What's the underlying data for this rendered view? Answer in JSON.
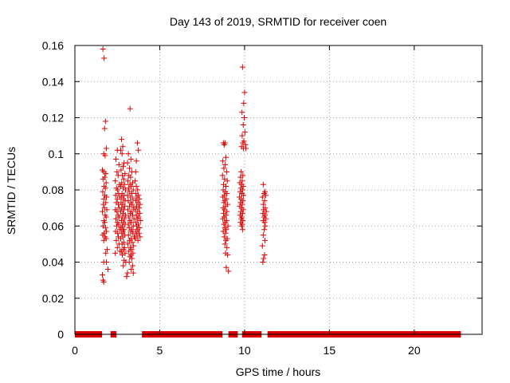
{
  "chart_data": {
    "type": "scatter",
    "title": "Day 143 of 2019, SRMTID for receiver coen",
    "xlabel": "GPS time / hours",
    "ylabel": "SRMTID / TECUs",
    "xlim": [
      0,
      24
    ],
    "ylim": [
      0,
      0.16
    ],
    "x_ticks": [
      {
        "value": 0,
        "label": "0"
      },
      {
        "value": 5,
        "label": "5"
      },
      {
        "value": 10,
        "label": "10"
      },
      {
        "value": 15,
        "label": "15"
      },
      {
        "value": 20,
        "label": "20"
      }
    ],
    "y_ticks": [
      {
        "value": 0,
        "label": "0"
      },
      {
        "value": 0.02,
        "label": "0.02"
      },
      {
        "value": 0.04,
        "label": "0.04"
      },
      {
        "value": 0.06,
        "label": "0.06"
      },
      {
        "value": 0.08,
        "label": "0.08"
      },
      {
        "value": 0.1,
        "label": "0.1"
      },
      {
        "value": 0.12,
        "label": "0.12"
      },
      {
        "value": 0.14,
        "label": "0.14"
      },
      {
        "value": 0.16,
        "label": "0.16"
      }
    ],
    "grid": true,
    "marker": "+",
    "color": "#dd0000",
    "zero_segments": [
      [
        0.0,
        1.6
      ],
      [
        2.1,
        2.45
      ],
      [
        3.95,
        8.7
      ],
      [
        9.05,
        9.6
      ],
      [
        9.85,
        11.0
      ],
      [
        11.35,
        22.75
      ]
    ],
    "points": [
      [
        1.65,
        0.158
      ],
      [
        1.72,
        0.153
      ],
      [
        1.8,
        0.118
      ],
      [
        1.75,
        0.114
      ],
      [
        1.85,
        0.103
      ],
      [
        1.7,
        0.1
      ],
      [
        1.78,
        0.099
      ],
      [
        1.62,
        0.091
      ],
      [
        1.7,
        0.09
      ],
      [
        1.82,
        0.089
      ],
      [
        1.76,
        0.087
      ],
      [
        1.66,
        0.086
      ],
      [
        1.84,
        0.084
      ],
      [
        1.72,
        0.082
      ],
      [
        1.8,
        0.081
      ],
      [
        1.64,
        0.079
      ],
      [
        1.76,
        0.077
      ],
      [
        1.86,
        0.076
      ],
      [
        1.7,
        0.075
      ],
      [
        1.82,
        0.073
      ],
      [
        1.68,
        0.072
      ],
      [
        1.74,
        0.07
      ],
      [
        1.88,
        0.069
      ],
      [
        1.62,
        0.068
      ],
      [
        1.78,
        0.066
      ],
      [
        1.84,
        0.065
      ],
      [
        1.7,
        0.063
      ],
      [
        1.76,
        0.062
      ],
      [
        1.66,
        0.06
      ],
      [
        1.8,
        0.059
      ],
      [
        1.86,
        0.057
      ],
      [
        1.72,
        0.056
      ],
      [
        1.64,
        0.055
      ],
      [
        1.78,
        0.054
      ],
      [
        1.84,
        0.053
      ],
      [
        1.7,
        0.052
      ],
      [
        1.9,
        0.047
      ],
      [
        1.82,
        0.045
      ],
      [
        1.7,
        0.04
      ],
      [
        1.86,
        0.04
      ],
      [
        1.95,
        0.036
      ],
      [
        1.62,
        0.033
      ],
      [
        1.66,
        0.03
      ],
      [
        1.7,
        0.029
      ],
      [
        2.5,
        0.102
      ],
      [
        2.42,
        0.097
      ],
      [
        2.6,
        0.094
      ],
      [
        2.48,
        0.09
      ],
      [
        2.55,
        0.088
      ],
      [
        2.38,
        0.085
      ],
      [
        2.62,
        0.083
      ],
      [
        2.45,
        0.081
      ],
      [
        2.52,
        0.08
      ],
      [
        2.58,
        0.078
      ],
      [
        2.4,
        0.077
      ],
      [
        2.65,
        0.076
      ],
      [
        2.5,
        0.075
      ],
      [
        2.44,
        0.073
      ],
      [
        2.56,
        0.072
      ],
      [
        2.6,
        0.07
      ],
      [
        2.38,
        0.069
      ],
      [
        2.48,
        0.068
      ],
      [
        2.54,
        0.066
      ],
      [
        2.62,
        0.065
      ],
      [
        2.42,
        0.064
      ],
      [
        2.5,
        0.062
      ],
      [
        2.58,
        0.061
      ],
      [
        2.46,
        0.06
      ],
      [
        2.64,
        0.058
      ],
      [
        2.4,
        0.057
      ],
      [
        2.52,
        0.056
      ],
      [
        2.56,
        0.054
      ],
      [
        2.44,
        0.052
      ],
      [
        2.6,
        0.05
      ],
      [
        2.5,
        0.048
      ],
      [
        2.66,
        0.046
      ],
      [
        2.38,
        0.045
      ],
      [
        2.75,
        0.108
      ],
      [
        2.82,
        0.104
      ],
      [
        2.7,
        0.102
      ],
      [
        2.78,
        0.1
      ],
      [
        2.9,
        0.095
      ],
      [
        2.84,
        0.093
      ],
      [
        2.72,
        0.091
      ],
      [
        2.95,
        0.089
      ],
      [
        2.8,
        0.088
      ],
      [
        2.88,
        0.086
      ],
      [
        2.76,
        0.084
      ],
      [
        2.92,
        0.083
      ],
      [
        2.7,
        0.082
      ],
      [
        2.85,
        0.081
      ],
      [
        2.98,
        0.08
      ],
      [
        2.78,
        0.078
      ],
      [
        2.9,
        0.077
      ],
      [
        2.74,
        0.076
      ],
      [
        2.86,
        0.075
      ],
      [
        2.96,
        0.074
      ],
      [
        2.72,
        0.073
      ],
      [
        2.82,
        0.072
      ],
      [
        2.94,
        0.071
      ],
      [
        2.76,
        0.07
      ],
      [
        2.88,
        0.069
      ],
      [
        2.7,
        0.068
      ],
      [
        2.84,
        0.067
      ],
      [
        2.98,
        0.066
      ],
      [
        2.78,
        0.065
      ],
      [
        2.92,
        0.064
      ],
      [
        2.74,
        0.063
      ],
      [
        2.86,
        0.062
      ],
      [
        2.96,
        0.061
      ],
      [
        2.8,
        0.06
      ],
      [
        2.72,
        0.059
      ],
      [
        2.9,
        0.058
      ],
      [
        2.84,
        0.057
      ],
      [
        2.76,
        0.056
      ],
      [
        2.94,
        0.055
      ],
      [
        2.82,
        0.054
      ],
      [
        2.7,
        0.053
      ],
      [
        2.88,
        0.051
      ],
      [
        2.78,
        0.05
      ],
      [
        2.92,
        0.048
      ],
      [
        2.86,
        0.047
      ],
      [
        2.74,
        0.046
      ],
      [
        2.96,
        0.045
      ],
      [
        2.8,
        0.044
      ],
      [
        2.9,
        0.041
      ],
      [
        3.0,
        0.04
      ],
      [
        2.85,
        0.038
      ],
      [
        3.1,
        0.034
      ],
      [
        3.05,
        0.032
      ],
      [
        3.25,
        0.125
      ],
      [
        3.15,
        0.1
      ],
      [
        3.3,
        0.097
      ],
      [
        3.1,
        0.095
      ],
      [
        3.22,
        0.092
      ],
      [
        3.35,
        0.09
      ],
      [
        3.18,
        0.088
      ],
      [
        3.28,
        0.087
      ],
      [
        3.12,
        0.085
      ],
      [
        3.4,
        0.084
      ],
      [
        3.24,
        0.083
      ],
      [
        3.32,
        0.082
      ],
      [
        3.16,
        0.081
      ],
      [
        3.44,
        0.08
      ],
      [
        3.2,
        0.079
      ],
      [
        3.36,
        0.078
      ],
      [
        3.1,
        0.077
      ],
      [
        3.28,
        0.076
      ],
      [
        3.42,
        0.075
      ],
      [
        3.14,
        0.074
      ],
      [
        3.3,
        0.073
      ],
      [
        3.38,
        0.072
      ],
      [
        3.22,
        0.071
      ],
      [
        3.46,
        0.07
      ],
      [
        3.12,
        0.069
      ],
      [
        3.34,
        0.068
      ],
      [
        3.26,
        0.067
      ],
      [
        3.4,
        0.066
      ],
      [
        3.18,
        0.065
      ],
      [
        3.48,
        0.064
      ],
      [
        3.24,
        0.063
      ],
      [
        3.32,
        0.062
      ],
      [
        3.14,
        0.061
      ],
      [
        3.44,
        0.06
      ],
      [
        3.2,
        0.059
      ],
      [
        3.36,
        0.058
      ],
      [
        3.28,
        0.057
      ],
      [
        3.42,
        0.056
      ],
      [
        3.16,
        0.055
      ],
      [
        3.5,
        0.054
      ],
      [
        3.3,
        0.053
      ],
      [
        3.22,
        0.052
      ],
      [
        3.38,
        0.051
      ],
      [
        3.12,
        0.05
      ],
      [
        3.46,
        0.049
      ],
      [
        3.26,
        0.048
      ],
      [
        3.34,
        0.047
      ],
      [
        3.18,
        0.046
      ],
      [
        3.42,
        0.045
      ],
      [
        3.3,
        0.044
      ],
      [
        3.24,
        0.043
      ],
      [
        3.36,
        0.042
      ],
      [
        3.2,
        0.04
      ],
      [
        3.4,
        0.038
      ],
      [
        3.32,
        0.036
      ],
      [
        3.44,
        0.034
      ],
      [
        3.55,
        0.085
      ],
      [
        3.62,
        0.082
      ],
      [
        3.7,
        0.08
      ],
      [
        3.58,
        0.078
      ],
      [
        3.75,
        0.077
      ],
      [
        3.66,
        0.076
      ],
      [
        3.8,
        0.075
      ],
      [
        3.6,
        0.074
      ],
      [
        3.72,
        0.073
      ],
      [
        3.84,
        0.072
      ],
      [
        3.64,
        0.071
      ],
      [
        3.78,
        0.07
      ],
      [
        3.56,
        0.069
      ],
      [
        3.7,
        0.068
      ],
      [
        3.82,
        0.067
      ],
      [
        3.62,
        0.066
      ],
      [
        3.76,
        0.065
      ],
      [
        3.68,
        0.064
      ],
      [
        3.86,
        0.063
      ],
      [
        3.58,
        0.062
      ],
      [
        3.74,
        0.061
      ],
      [
        3.64,
        0.06
      ],
      [
        3.8,
        0.059
      ],
      [
        3.7,
        0.058
      ],
      [
        3.6,
        0.057
      ],
      [
        3.78,
        0.056
      ],
      [
        3.66,
        0.055
      ],
      [
        3.84,
        0.054
      ],
      [
        3.56,
        0.053
      ],
      [
        3.72,
        0.052
      ],
      [
        3.68,
        0.106
      ],
      [
        3.74,
        0.102
      ],
      [
        3.62,
        0.096
      ],
      [
        3.58,
        0.09
      ],
      [
        8.75,
        0.106
      ],
      [
        8.85,
        0.106
      ],
      [
        8.8,
        0.105
      ],
      [
        8.9,
        0.098
      ],
      [
        8.72,
        0.096
      ],
      [
        8.86,
        0.094
      ],
      [
        8.78,
        0.092
      ],
      [
        8.94,
        0.09
      ],
      [
        8.7,
        0.088
      ],
      [
        8.82,
        0.086
      ],
      [
        8.98,
        0.085
      ],
      [
        8.76,
        0.083
      ],
      [
        8.9,
        0.082
      ],
      [
        8.74,
        0.08
      ],
      [
        8.86,
        0.079
      ],
      [
        8.96,
        0.078
      ],
      [
        8.8,
        0.077
      ],
      [
        8.72,
        0.076
      ],
      [
        8.92,
        0.075
      ],
      [
        8.84,
        0.074
      ],
      [
        8.78,
        0.073
      ],
      [
        9.0,
        0.072
      ],
      [
        8.88,
        0.071
      ],
      [
        8.74,
        0.07
      ],
      [
        8.82,
        0.069
      ],
      [
        8.96,
        0.068
      ],
      [
        8.76,
        0.067
      ],
      [
        8.9,
        0.066
      ],
      [
        8.8,
        0.065
      ],
      [
        8.72,
        0.064
      ],
      [
        8.94,
        0.063
      ],
      [
        8.86,
        0.062
      ],
      [
        8.78,
        0.061
      ],
      [
        9.02,
        0.06
      ],
      [
        8.84,
        0.059
      ],
      [
        8.92,
        0.058
      ],
      [
        8.74,
        0.057
      ],
      [
        8.88,
        0.056
      ],
      [
        8.8,
        0.054
      ],
      [
        8.98,
        0.053
      ],
      [
        8.9,
        0.052
      ],
      [
        8.84,
        0.05
      ],
      [
        8.96,
        0.048
      ],
      [
        8.88,
        0.045
      ],
      [
        9.0,
        0.044
      ],
      [
        8.92,
        0.037
      ],
      [
        9.05,
        0.035
      ],
      [
        9.88,
        0.148
      ],
      [
        10.0,
        0.134
      ],
      [
        9.95,
        0.128
      ],
      [
        9.85,
        0.123
      ],
      [
        9.98,
        0.12
      ],
      [
        9.92,
        0.116
      ],
      [
        10.02,
        0.112
      ],
      [
        9.86,
        0.11
      ],
      [
        9.96,
        0.107
      ],
      [
        9.9,
        0.106
      ],
      [
        10.05,
        0.105
      ],
      [
        9.82,
        0.104
      ],
      [
        9.94,
        0.103
      ],
      [
        10.08,
        0.103
      ],
      [
        9.8,
        0.09
      ],
      [
        9.9,
        0.088
      ],
      [
        9.76,
        0.087
      ],
      [
        9.86,
        0.085
      ],
      [
        9.72,
        0.084
      ],
      [
        9.82,
        0.083
      ],
      [
        9.92,
        0.082
      ],
      [
        9.78,
        0.081
      ],
      [
        9.88,
        0.08
      ],
      [
        9.74,
        0.079
      ],
      [
        9.84,
        0.078
      ],
      [
        9.94,
        0.077
      ],
      [
        9.7,
        0.076
      ],
      [
        9.8,
        0.075
      ],
      [
        9.9,
        0.074
      ],
      [
        9.76,
        0.073
      ],
      [
        9.86,
        0.072
      ],
      [
        9.72,
        0.071
      ],
      [
        9.82,
        0.07
      ],
      [
        9.92,
        0.069
      ],
      [
        9.78,
        0.068
      ],
      [
        9.88,
        0.067
      ],
      [
        9.74,
        0.066
      ],
      [
        9.84,
        0.065
      ],
      [
        9.8,
        0.064
      ],
      [
        9.9,
        0.063
      ],
      [
        9.76,
        0.062
      ],
      [
        9.86,
        0.061
      ],
      [
        9.82,
        0.06
      ],
      [
        9.88,
        0.058
      ],
      [
        11.1,
        0.083
      ],
      [
        11.2,
        0.079
      ],
      [
        11.15,
        0.078
      ],
      [
        11.25,
        0.077
      ],
      [
        11.05,
        0.076
      ],
      [
        11.18,
        0.074
      ],
      [
        11.1,
        0.072
      ],
      [
        11.22,
        0.07
      ],
      [
        11.12,
        0.069
      ],
      [
        11.28,
        0.068
      ],
      [
        11.08,
        0.067
      ],
      [
        11.2,
        0.066
      ],
      [
        11.14,
        0.065
      ],
      [
        11.26,
        0.064
      ],
      [
        11.1,
        0.063
      ],
      [
        11.18,
        0.062
      ],
      [
        11.22,
        0.06
      ],
      [
        11.16,
        0.058
      ],
      [
        11.1,
        0.055
      ],
      [
        11.2,
        0.052
      ],
      [
        11.05,
        0.049
      ],
      [
        11.18,
        0.044
      ],
      [
        11.12,
        0.042
      ],
      [
        11.08,
        0.04
      ]
    ]
  }
}
